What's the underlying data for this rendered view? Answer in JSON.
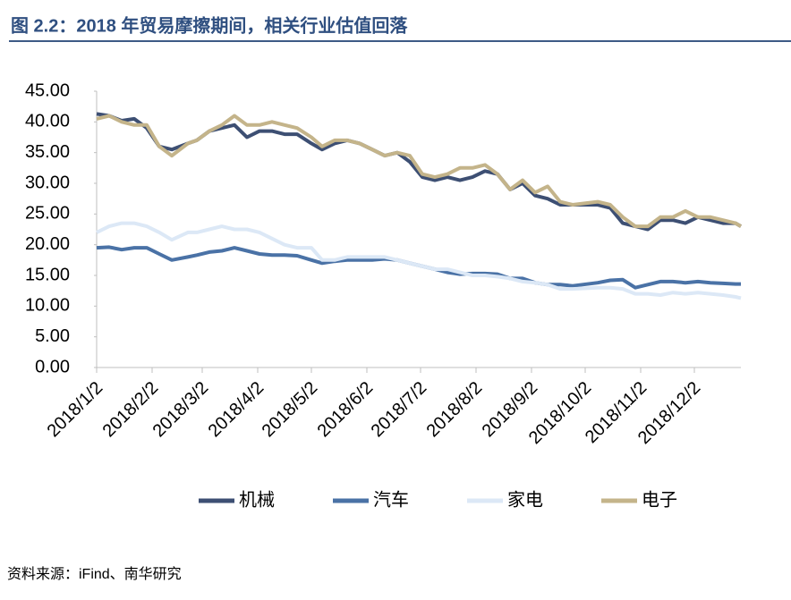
{
  "chart_data": {
    "type": "line",
    "title": "图 2.2：2018 年贸易摩擦期间，相关行业估值回落",
    "source": "资料来源：iFind、南华研究",
    "x": [
      "2018/1/2",
      "2018/1/9",
      "2018/1/16",
      "2018/1/23",
      "2018/1/30",
      "2018/2/6",
      "2018/2/13",
      "2018/2/22",
      "2018/2/27",
      "2018/3/6",
      "2018/3/13",
      "2018/3/20",
      "2018/3/27",
      "2018/4/3",
      "2018/4/10",
      "2018/4/17",
      "2018/4/24",
      "2018/5/2",
      "2018/5/8",
      "2018/5/15",
      "2018/5/22",
      "2018/5/29",
      "2018/6/5",
      "2018/6/12",
      "2018/6/19",
      "2018/6/26",
      "2018/7/3",
      "2018/7/10",
      "2018/7/17",
      "2018/7/24",
      "2018/7/31",
      "2018/8/7",
      "2018/8/14",
      "2018/8/21",
      "2018/8/28",
      "2018/9/4",
      "2018/9/11",
      "2018/9/18",
      "2018/9/25",
      "2018/10/9",
      "2018/10/16",
      "2018/10/23",
      "2018/10/30",
      "2018/11/6",
      "2018/11/13",
      "2018/11/20",
      "2018/11/27",
      "2018/12/4",
      "2018/12/11",
      "2018/12/18",
      "2018/12/25",
      "2018/12/28"
    ],
    "series": [
      {
        "name": "机械",
        "color": "#3d4f73",
        "values": [
          41.3,
          41,
          40.2,
          40.5,
          39,
          36,
          35.5,
          36.5,
          37,
          38.5,
          39,
          39.5,
          37.5,
          38.5,
          38.5,
          38,
          38,
          36.5,
          35.5,
          36.5,
          37,
          36.5,
          35.5,
          34.5,
          35,
          33.5,
          31,
          30.5,
          31,
          30.5,
          31,
          32,
          31.5,
          29,
          30,
          28,
          27.5,
          26.5,
          26.5,
          26.5,
          26,
          23.5,
          23,
          22.5,
          24,
          24,
          23.5,
          24.5,
          24,
          23.5,
          23.5,
          23
        ]
      },
      {
        "name": "汽车",
        "color": "#4a72a6",
        "values": [
          19.5,
          19.6,
          19.2,
          19.5,
          19.5,
          18.5,
          17.5,
          18,
          18.3,
          18.8,
          19,
          19.5,
          19,
          18.5,
          18.3,
          18.3,
          18.2,
          17.5,
          17,
          17.3,
          17.5,
          17.5,
          17.5,
          17.7,
          17.5,
          17,
          16.5,
          16,
          15.5,
          15.2,
          15.3,
          15.3,
          15.2,
          14.5,
          14.5,
          13.8,
          13.5,
          13.5,
          13.3,
          13.8,
          14.2,
          14.3,
          13,
          13.5,
          14,
          14,
          13.8,
          14,
          13.8,
          13.7,
          13.6,
          13.6
        ]
      },
      {
        "name": "家电",
        "color": "#dce8f6",
        "values": [
          22,
          23,
          23.5,
          23.5,
          23,
          22,
          20.8,
          22,
          22,
          22.5,
          23,
          22.5,
          22.5,
          22,
          21,
          20,
          19.5,
          19.5,
          17.5,
          17.5,
          18,
          18,
          18,
          18,
          17.5,
          17,
          16.5,
          16,
          16,
          15.5,
          15,
          15,
          14.8,
          14.5,
          14,
          13.8,
          13.5,
          12.8,
          12.8,
          13,
          13,
          12.8,
          12,
          12,
          11.8,
          12.2,
          12,
          12.2,
          12,
          11.8,
          11.5,
          11.3
        ]
      },
      {
        "name": "电子",
        "color": "#c4b48a",
        "values": [
          40.5,
          41,
          40,
          39.5,
          39.5,
          36,
          34.5,
          36.5,
          37,
          38.5,
          39.5,
          41,
          39.5,
          39.5,
          40,
          39.5,
          39,
          37.5,
          36,
          37,
          37,
          36.5,
          35.5,
          34.5,
          35,
          34.5,
          31.5,
          31,
          31.5,
          32.5,
          32.5,
          33,
          31.5,
          29,
          30.5,
          28.5,
          29.5,
          27,
          26.5,
          27,
          26.5,
          24.5,
          23,
          23,
          24.5,
          24.5,
          25.5,
          24.5,
          24.5,
          24,
          23.5,
          23
        ]
      }
    ],
    "xlim": [
      "2018/1/2",
      "2018/12/28"
    ],
    "xticks": [
      "2018/1/2",
      "2018/2/2",
      "2018/3/2",
      "2018/4/2",
      "2018/5/2",
      "2018/6/2",
      "2018/7/2",
      "2018/8/2",
      "2018/9/2",
      "2018/10/2",
      "2018/11/2",
      "2018/12/2"
    ],
    "ylim": [
      0,
      45
    ],
    "yticks": [
      {
        "value": 0,
        "label": "0.00"
      },
      {
        "value": 5,
        "label": "5.00"
      },
      {
        "value": 10,
        "label": "10.00"
      },
      {
        "value": 15,
        "label": "15.00"
      },
      {
        "value": 20,
        "label": "20.00"
      },
      {
        "value": 25,
        "label": "25.00"
      },
      {
        "value": 30,
        "label": "30.00"
      },
      {
        "value": 35,
        "label": "35.00"
      },
      {
        "value": 40,
        "label": "40.00"
      },
      {
        "value": 45,
        "label": "45.00"
      }
    ],
    "legend": "bottom"
  }
}
